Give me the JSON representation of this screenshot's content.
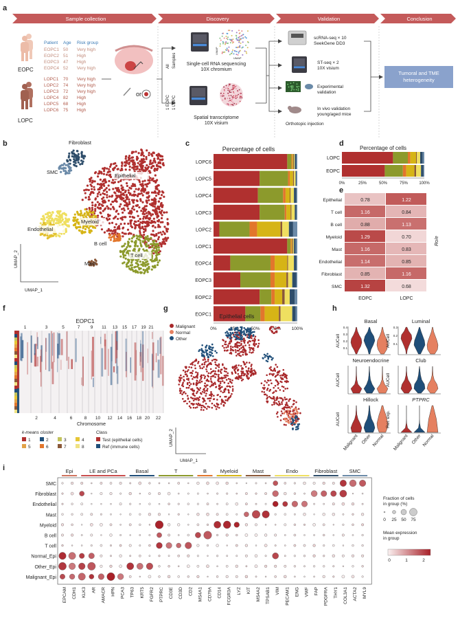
{
  "panels": {
    "a": "a",
    "b": "b",
    "c": "c",
    "d": "d",
    "e": "e",
    "f": "f",
    "g": "g",
    "h": "h",
    "i": "i"
  },
  "stages": [
    "Sample collection",
    "Discovery",
    "Validation",
    "Conclusion"
  ],
  "patients": {
    "headers": [
      "Patient",
      "Age",
      "Risk group"
    ],
    "eopc": [
      [
        "EOPC1",
        "50",
        "Very high"
      ],
      [
        "EOPC2",
        "51",
        "High"
      ],
      [
        "EOPC3",
        "47",
        "High"
      ],
      [
        "EOPC4",
        "52",
        "Very high"
      ]
    ],
    "lopc": [
      [
        "LOPC1",
        "70",
        "Very high"
      ],
      [
        "LOPC2",
        "74",
        "Very high"
      ],
      [
        "LOPC3",
        "72",
        "Very high"
      ],
      [
        "LOPC4",
        "82",
        "High"
      ],
      [
        "LOPC5",
        "68",
        "High"
      ],
      [
        "LOPC6",
        "75",
        "High"
      ]
    ],
    "eopc_label": "EOPC",
    "lopc_label": "LOPC",
    "or": "or"
  },
  "discovery": {
    "all": "All",
    "samples": "Samples",
    "one_eopc": "1 EOPC",
    "one_lopc": "1 LOPC",
    "scrna": [
      "Single-cell RNA sequencing",
      "10X chromium"
    ],
    "spatial": [
      "Spatial transcriptome",
      "10X visium"
    ],
    "umap_mini": "UMAP"
  },
  "validation": {
    "scrna": [
      "scRNA-seq × 10",
      "SeekGene DD3"
    ],
    "st": [
      "ST-seq × 2",
      "10X visium"
    ],
    "exp": [
      "Experimental",
      "validation"
    ],
    "invivo": [
      "In vivo validation",
      "young/aged mice"
    ],
    "orthotopic": "Orthotopic injection"
  },
  "conclusion": [
    "Tumoral and TME",
    "heterogeneity"
  ],
  "umap_b": {
    "labels": [
      "Fibroblast",
      "SMC",
      "Epithelial",
      "Endothelial",
      "Myeloid",
      "B cell",
      "T cell",
      "Mast"
    ],
    "xlabel": "UMAP_1",
    "ylabel": "UMAP_2"
  },
  "chart_data": [
    {
      "type": "bar",
      "title": "Percentage of cells",
      "orientation": "horizontal-stacked",
      "categories": [
        "LOPC6",
        "LOPC5",
        "LOPC4",
        "LOPC3",
        "LOPC2",
        "LOPC1",
        "EOPC4",
        "EOPC3",
        "EOPC2",
        "EOPC1"
      ],
      "xticks": [
        "0%",
        "25%",
        "50%",
        "75%",
        "100%"
      ],
      "series": [
        {
          "name": "Epithelial",
          "color": "#b0302f",
          "values": [
            88,
            55,
            53,
            55,
            7,
            88,
            20,
            32,
            55,
            38
          ]
        },
        {
          "name": "T cell",
          "color": "#8c9a2c",
          "values": [
            5,
            34,
            30,
            30,
            36,
            4,
            48,
            36,
            14,
            18
          ]
        },
        {
          "name": "B cell",
          "color": "#e2762c",
          "values": [
            1,
            2,
            3,
            2,
            9,
            1,
            5,
            5,
            4,
            5
          ]
        },
        {
          "name": "Myeloid",
          "color": "#d6b416",
          "values": [
            1,
            4,
            5,
            5,
            28,
            1,
            15,
            14,
            9,
            17
          ]
        },
        {
          "name": "Mast",
          "color": "#8a5838",
          "values": [
            1,
            1,
            1,
            1,
            2,
            1,
            1,
            2,
            3,
            2
          ]
        },
        {
          "name": "Endothelial",
          "color": "#efdf60",
          "values": [
            1,
            2,
            4,
            4,
            8,
            1,
            7,
            5,
            6,
            14
          ]
        },
        {
          "name": "Fibroblast",
          "color": "#2e4d6a",
          "values": [
            2,
            1,
            3,
            2,
            5,
            2,
            3,
            5,
            6,
            4
          ]
        },
        {
          "name": "SMC",
          "color": "#6b8aa8",
          "values": [
            1,
            1,
            1,
            1,
            5,
            2,
            1,
            1,
            3,
            2
          ]
        }
      ]
    },
    {
      "type": "bar",
      "title": "Percentage of cells",
      "orientation": "horizontal-stacked",
      "categories": [
        "LOPC",
        "EOPC"
      ],
      "xticks": [
        "0%",
        "25%",
        "50%",
        "75%",
        "100%"
      ],
      "series": [
        {
          "name": "Epithelial",
          "color": "#b0302f",
          "values": [
            62,
            52
          ]
        },
        {
          "name": "T cell",
          "color": "#8c9a2c",
          "values": [
            18,
            22
          ]
        },
        {
          "name": "B cell",
          "color": "#e2762c",
          "values": [
            3,
            4
          ]
        },
        {
          "name": "Myeloid",
          "color": "#d6b416",
          "values": [
            7,
            10
          ]
        },
        {
          "name": "Mast",
          "color": "#8a5838",
          "values": [
            1,
            2
          ]
        },
        {
          "name": "Endothelial",
          "color": "#efdf60",
          "values": [
            4,
            6
          ]
        },
        {
          "name": "Fibroblast",
          "color": "#2e4d6a",
          "values": [
            3,
            3
          ]
        },
        {
          "name": "SMC",
          "color": "#6b8aa8",
          "values": [
            2,
            1
          ]
        }
      ]
    },
    {
      "type": "heatmap",
      "ylabel": "Ro/e",
      "rows": [
        "Epithelial",
        "T cell",
        "B cell",
        "Myeloid",
        "Mast",
        "Endothelial",
        "Fibroblast",
        "SMC"
      ],
      "cols": [
        "EOPC",
        "LOPC"
      ],
      "values": [
        [
          "0.78",
          "1.22"
        ],
        [
          "1.16",
          "0.84"
        ],
        [
          "0.88",
          "1.13"
        ],
        [
          "1.29",
          "0.70"
        ],
        [
          "1.16",
          "0.83"
        ],
        [
          "1.14",
          "0.85"
        ],
        [
          "0.85",
          "1.16"
        ],
        [
          "1.32",
          "0.68"
        ]
      ]
    },
    {
      "type": "heatmap",
      "title": "EOPC1",
      "xlabel": "Chromosome",
      "top_ticks": [
        "1",
        "3",
        "5",
        "7",
        "9",
        "11",
        "13",
        "15",
        "17",
        "19",
        "21"
      ],
      "bottom_ticks": [
        "2",
        "4",
        "6",
        "8",
        "10",
        "12",
        "14",
        "16",
        "18",
        "20",
        "22"
      ],
      "legend_title_kmeans": "k-means cluster",
      "kmeans": [
        {
          "label": "1",
          "color": "#b0302f"
        },
        {
          "label": "2",
          "color": "#1f4e79"
        },
        {
          "label": "3",
          "color": "#c3c35c"
        },
        {
          "label": "4",
          "color": "#e6c635"
        },
        {
          "label": "5",
          "color": "#e2a248"
        },
        {
          "label": "6",
          "color": "#e2762c"
        },
        {
          "label": "7",
          "color": "#8a5838"
        },
        {
          "label": "8",
          "color": "#f0e282"
        }
      ],
      "legend_title_class": "Class",
      "classes": [
        {
          "label": "Test (epithelial cells)",
          "color": "#b0302f"
        },
        {
          "label": "Ref (immune cells)",
          "color": "#1f4e79"
        }
      ]
    },
    {
      "type": "scatter",
      "title": "Epithelial cells",
      "legend": [
        {
          "label": "Malignant",
          "color": "#a8282a"
        },
        {
          "label": "Normal",
          "color": "#e58060"
        },
        {
          "label": "Other",
          "color": "#1f4e79"
        }
      ],
      "xlabel": "UMAP_1",
      "ylabel": "UMAP_2"
    },
    {
      "type": "violin",
      "panels": [
        {
          "title": "Basal",
          "ylabel": "AUCell",
          "italic": false
        },
        {
          "title": "Luminal",
          "ylabel": "AUCell",
          "italic": false
        },
        {
          "title": "Neuroendocrine",
          "ylabel": "AUCell",
          "italic": false
        },
        {
          "title": "Club",
          "ylabel": "AUCell",
          "italic": false
        },
        {
          "title": "Hillock",
          "ylabel": "AUCell",
          "italic": false
        },
        {
          "title": "PTPRC",
          "ylabel": "Rel. exp.",
          "italic": true
        }
      ],
      "groups_left": [
        "Malignant",
        "Other",
        "Normal"
      ],
      "groups_right": [
        "Malignant",
        "Other",
        "Normal"
      ],
      "basal_ticks": [
        "0.4",
        "0.3",
        "0.2",
        "0.1"
      ],
      "luminal_ticks": [
        "0.3",
        "0.2",
        "0.1"
      ],
      "colors": {
        "Malignant": "#b0302f",
        "Other": "#1f4e79",
        "Normal": "#e58060"
      }
    },
    {
      "type": "scatter",
      "subtype": "dotplot",
      "groups": [
        {
          "label": "Epi",
          "color": "#d0735e",
          "span": [
            0,
            1
          ]
        },
        {
          "label": "LE and PCa",
          "color": "#c94d4d",
          "span": [
            2,
            6
          ]
        },
        {
          "label": "Basal",
          "color": "#1f4e79",
          "span": [
            7,
            9
          ]
        },
        {
          "label": "T",
          "color": "#8c9a2c",
          "span": [
            10,
            13
          ]
        },
        {
          "label": "B",
          "color": "#e2762c",
          "span": [
            14,
            15
          ]
        },
        {
          "label": "Myeloid",
          "color": "#d6b416",
          "span": [
            16,
            18
          ]
        },
        {
          "label": "Mast",
          "color": "#8a5838",
          "span": [
            19,
            21
          ]
        },
        {
          "label": "Endo",
          "color": "#efdf60",
          "span": [
            22,
            25
          ]
        },
        {
          "label": "Fibroblast",
          "color": "#2e4d6a",
          "span": [
            26,
            28
          ]
        },
        {
          "label": "SMC",
          "color": "#6b8aa8",
          "span": [
            29,
            31
          ]
        }
      ],
      "genes": [
        "EPCAM",
        "CDH1",
        "KLK3",
        "AR",
        "AMACR",
        "HPN",
        "PCA3",
        "TP63",
        "KRT5",
        "FGFR2",
        "PTPRC",
        "CD3E",
        "CD3D",
        "CD2",
        "MS4A1",
        "CD79A",
        "CD14",
        "FCGR3A",
        "LYZ",
        "KIT",
        "MS4A2",
        "TPSAB1",
        "VIM",
        "PECAM1",
        "ENG",
        "VWF",
        "FAP",
        "PDGFRA",
        "THY1",
        "COL3A1",
        "ACTA2",
        "MYL9"
      ],
      "rows": [
        "SMC",
        "Fibroblast",
        "Endothelial",
        "Mast",
        "Myeloid",
        "B cell",
        "T cell",
        "Normal_Epi",
        "Other_Epi",
        "Malignant_Epi"
      ],
      "legend_fraction_title": [
        "Fraction of cells",
        "in group (%)"
      ],
      "fraction_ticks": [
        "0",
        "25",
        "50",
        "75"
      ],
      "legend_expr_title": [
        "Mean expression",
        "in group"
      ],
      "expr_ticks": [
        "0",
        "1",
        "2"
      ]
    }
  ]
}
